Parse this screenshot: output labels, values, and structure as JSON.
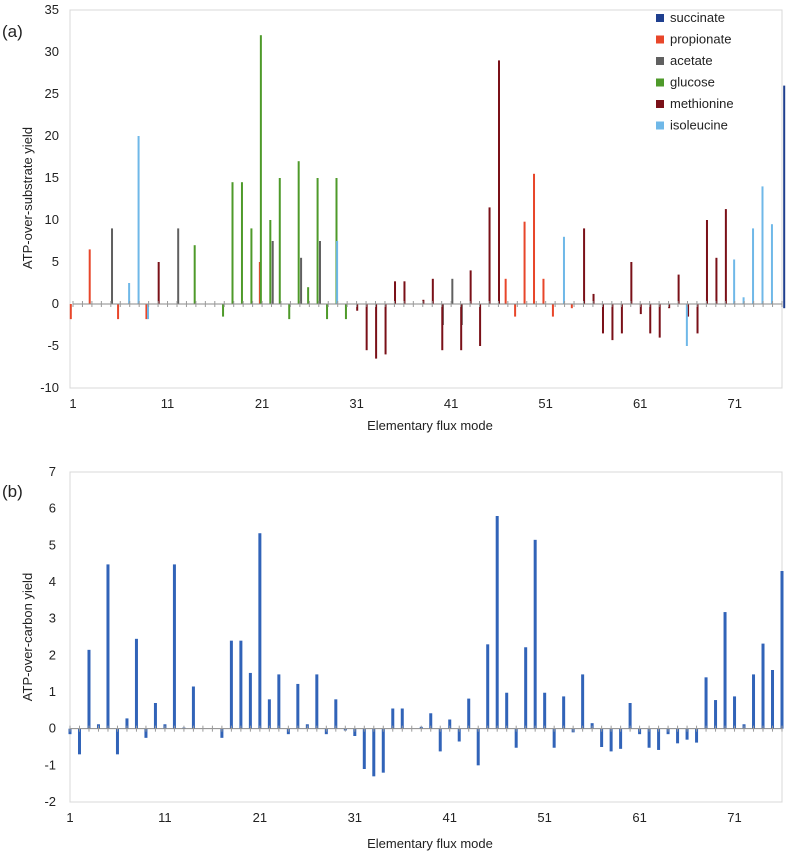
{
  "figure": {
    "panel_a_label": "(a)",
    "panel_b_label": "(b)"
  },
  "chart_data": [
    {
      "type": "bar",
      "panel": "(a)",
      "title": "",
      "xlabel": "Elementary flux mode",
      "ylabel": "ATP-over-substrate yield",
      "ylim": [
        -10,
        35
      ],
      "yticks": [
        -10,
        -5,
        0,
        5,
        10,
        15,
        20,
        25,
        30,
        35
      ],
      "xlim": [
        1,
        76
      ],
      "xticks": [
        1,
        11,
        21,
        31,
        41,
        51,
        61,
        71
      ],
      "legend_position": "top-right",
      "grid": false,
      "legend": [
        {
          "name": "succinate",
          "color": "#1f3f8f"
        },
        {
          "name": "propionate",
          "color": "#e8462a"
        },
        {
          "name": "acetate",
          "color": "#606060"
        },
        {
          "name": "glucose",
          "color": "#4e9a2a"
        },
        {
          "name": "methionine",
          "color": "#7a1018"
        },
        {
          "name": "isoleucine",
          "color": "#6fb8e8"
        }
      ],
      "series": [
        {
          "name": "succinate",
          "color": "#1f3f8f",
          "values": [
            [
              76,
              26
            ],
            [
              76,
              -0.5
            ]
          ]
        },
        {
          "name": "propionate",
          "color": "#e8462a",
          "values": [
            [
              1,
              -1.8
            ],
            [
              3,
              6.5
            ],
            [
              6,
              -1.8
            ],
            [
              9,
              -1.8
            ],
            [
              21,
              5
            ],
            [
              47,
              3
            ],
            [
              48,
              -1.5
            ],
            [
              49,
              9.8
            ],
            [
              50,
              15.5
            ],
            [
              51,
              3
            ],
            [
              52,
              -1.5
            ],
            [
              54,
              -0.5
            ]
          ]
        },
        {
          "name": "acetate",
          "color": "#606060",
          "values": [
            [
              5,
              9
            ],
            [
              12,
              9
            ],
            [
              22,
              7.5
            ],
            [
              25,
              5.5
            ],
            [
              27,
              7.5
            ],
            [
              40,
              -2.5
            ],
            [
              41,
              3
            ],
            [
              42,
              -2.5
            ]
          ]
        },
        {
          "name": "glucose",
          "color": "#4e9a2a",
          "values": [
            [
              14,
              7
            ],
            [
              17,
              -1.5
            ],
            [
              18,
              14.5
            ],
            [
              19,
              14.5
            ],
            [
              20,
              9
            ],
            [
              21,
              32
            ],
            [
              22,
              10
            ],
            [
              23,
              15
            ],
            [
              24,
              -1.8
            ],
            [
              25,
              17
            ],
            [
              26,
              2
            ],
            [
              27,
              15
            ],
            [
              28,
              -1.8
            ],
            [
              29,
              15
            ],
            [
              30,
              -1.8
            ]
          ]
        },
        {
          "name": "methionine",
          "color": "#7a1018",
          "values": [
            [
              10,
              5
            ],
            [
              31,
              -0.8
            ],
            [
              32,
              -5.5
            ],
            [
              33,
              -6.5
            ],
            [
              34,
              -6
            ],
            [
              35,
              2.7
            ],
            [
              36,
              2.7
            ],
            [
              38,
              0.5
            ],
            [
              39,
              3
            ],
            [
              40,
              -5.5
            ],
            [
              42,
              -5.5
            ],
            [
              43,
              4
            ],
            [
              44,
              -5
            ],
            [
              45,
              11.5
            ],
            [
              46,
              29
            ],
            [
              55,
              9
            ],
            [
              56,
              1.2
            ],
            [
              57,
              -3.5
            ],
            [
              58,
              -4.3
            ],
            [
              59,
              -3.5
            ],
            [
              60,
              5
            ],
            [
              61,
              -1.2
            ],
            [
              62,
              -3.5
            ],
            [
              63,
              -4
            ],
            [
              64,
              -0.5
            ],
            [
              65,
              3.5
            ],
            [
              66,
              -1.5
            ],
            [
              67,
              -3.5
            ],
            [
              68,
              10
            ],
            [
              69,
              5.5
            ],
            [
              70,
              11.3
            ]
          ]
        },
        {
          "name": "isoleucine",
          "color": "#6fb8e8",
          "values": [
            [
              7,
              2.5
            ],
            [
              8,
              20
            ],
            [
              9,
              -1.8
            ],
            [
              29,
              7.5
            ],
            [
              53,
              8
            ],
            [
              66,
              -5
            ],
            [
              71,
              5.3
            ],
            [
              72,
              0.8
            ],
            [
              73,
              9
            ],
            [
              74,
              14
            ],
            [
              75,
              9.5
            ]
          ]
        }
      ]
    },
    {
      "type": "bar",
      "panel": "(b)",
      "title": "",
      "xlabel": "Elementary flux mode",
      "ylabel": "ATP-over-carbon yield",
      "ylim": [
        -2,
        7
      ],
      "yticks": [
        -2,
        -1,
        0,
        1,
        2,
        3,
        4,
        5,
        6,
        7
      ],
      "xlim": [
        1,
        76
      ],
      "xticks": [
        1,
        11,
        21,
        31,
        41,
        51,
        61,
        71
      ],
      "grid": false,
      "color": "#3163b8",
      "categories": [
        1,
        2,
        3,
        4,
        5,
        6,
        7,
        8,
        9,
        10,
        11,
        12,
        13,
        14,
        15,
        16,
        17,
        18,
        19,
        20,
        21,
        22,
        23,
        24,
        25,
        26,
        27,
        28,
        29,
        30,
        31,
        32,
        33,
        34,
        35,
        36,
        37,
        38,
        39,
        40,
        41,
        42,
        43,
        44,
        45,
        46,
        47,
        48,
        49,
        50,
        51,
        52,
        53,
        54,
        55,
        56,
        57,
        58,
        59,
        60,
        61,
        62,
        63,
        64,
        65,
        66,
        67,
        68,
        69,
        70,
        71,
        72,
        73,
        74,
        75,
        76
      ],
      "values": [
        -0.15,
        -0.7,
        2.15,
        0.12,
        4.48,
        -0.7,
        0.28,
        2.45,
        -0.25,
        0.7,
        0.12,
        4.48,
        0.03,
        1.15,
        0,
        0,
        -0.25,
        2.4,
        2.4,
        1.52,
        5.33,
        0.8,
        1.48,
        -0.15,
        1.22,
        0.12,
        1.48,
        -0.15,
        0.8,
        -0.05,
        -0.2,
        -1.1,
        -1.3,
        -1.2,
        0.55,
        0.55,
        0,
        0.05,
        0.42,
        -0.62,
        0.25,
        -0.35,
        0.82,
        -1.0,
        2.3,
        5.8,
        0.98,
        -0.52,
        2.22,
        5.15,
        0.98,
        -0.52,
        0.88,
        -0.1,
        1.48,
        0.15,
        -0.5,
        -0.62,
        -0.55,
        0.7,
        -0.15,
        -0.52,
        -0.58,
        -0.15,
        -0.4,
        -0.3,
        -0.38,
        1.4,
        0.78,
        3.18,
        0.88,
        0.12,
        1.48,
        2.32,
        1.6,
        4.3
      ]
    }
  ]
}
